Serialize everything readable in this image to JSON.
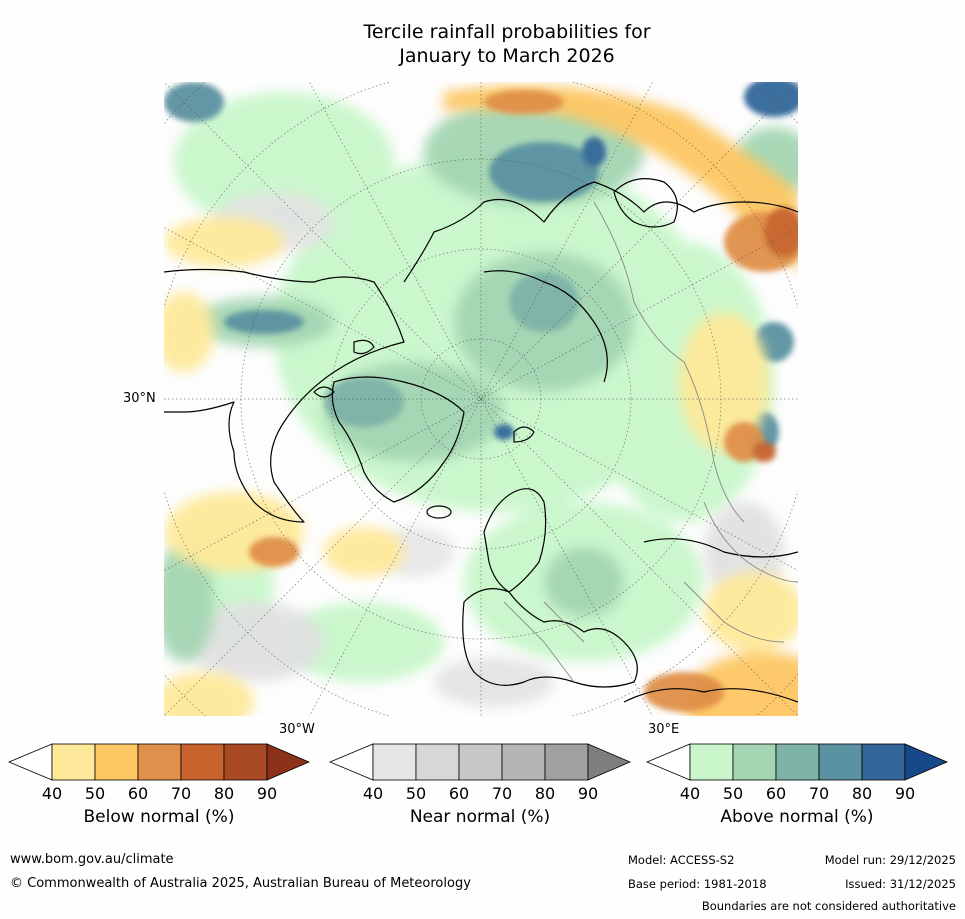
{
  "title_line1": "Tercile rainfall probabilities for",
  "title_line2": "January to March 2026",
  "map_labels": {
    "lat_30n": "30°N",
    "lon_30w": "30°W",
    "lon_30e": "30°E"
  },
  "colorbars": [
    {
      "title": "Below normal (%)",
      "ticks": [
        "40",
        "50",
        "60",
        "70",
        "80",
        "90"
      ],
      "colors": [
        "#ffffff",
        "#fee99a",
        "#fdc764",
        "#e0904a",
        "#c8632e",
        "#a94a25",
        "#8b3218"
      ]
    },
    {
      "title": "Near normal (%)",
      "ticks": [
        "40",
        "50",
        "60",
        "70",
        "80",
        "90"
      ],
      "colors": [
        "#ffffff",
        "#e6e6e6",
        "#d7d7d7",
        "#c7c7c7",
        "#b5b5b5",
        "#a0a0a0",
        "#7e7e7e"
      ]
    },
    {
      "title": "Above normal (%)",
      "ticks": [
        "40",
        "50",
        "60",
        "70",
        "80",
        "90"
      ],
      "colors": [
        "#ffffff",
        "#c9f7cb",
        "#a4d6b3",
        "#7fb3a7",
        "#5b92a1",
        "#336799",
        "#17498a"
      ]
    }
  ],
  "footer": {
    "website": "www.bom.gov.au/climate",
    "copyright": "© Commonwealth of Australia 2025, Australian Bureau of Meteorology",
    "model": "Model: ACCESS-S2",
    "base_period": "Base period: 1981-2018",
    "model_run": "Model run: 29/12/2025",
    "issued": "Issued: 31/12/2025",
    "disclaimer": "Boundaries are not considered authoritative"
  }
}
